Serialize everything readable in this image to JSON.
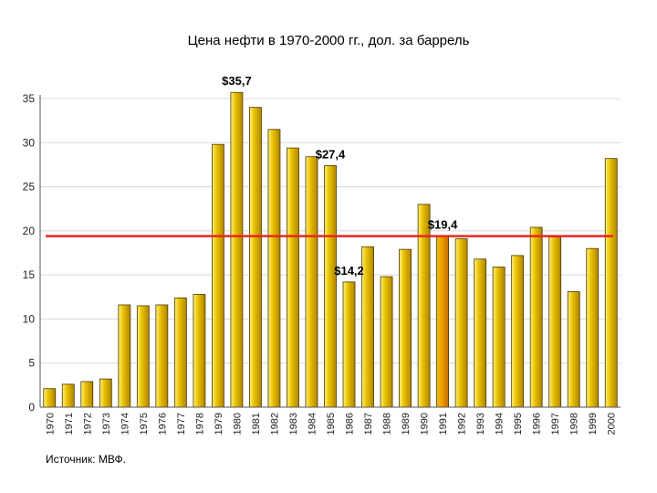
{
  "chart_data": {
    "type": "bar",
    "title": "Цена нефти в 1970-2000 гг., дол. за баррель",
    "source": "Источник: МВФ.",
    "xlabel": "",
    "ylabel": "",
    "ylim": [
      0,
      35
    ],
    "yticks": [
      0,
      5,
      10,
      15,
      20,
      25,
      30,
      35
    ],
    "grid": true,
    "categories": [
      "1970",
      "1971",
      "1972",
      "1973",
      "1974",
      "1975",
      "1976",
      "1977",
      "1978",
      "1979",
      "1980",
      "1981",
      "1982",
      "1983",
      "1984",
      "1985",
      "1986",
      "1987",
      "1988",
      "1989",
      "1990",
      "1991",
      "1992",
      "1993",
      "1994",
      "1995",
      "1996",
      "1997",
      "1998",
      "1999",
      "2000"
    ],
    "values": [
      2.1,
      2.6,
      2.9,
      3.2,
      11.6,
      11.5,
      11.6,
      12.4,
      12.8,
      29.8,
      35.7,
      34.0,
      31.5,
      29.4,
      28.4,
      27.4,
      14.2,
      18.2,
      14.8,
      17.9,
      23.0,
      19.4,
      19.1,
      16.8,
      15.9,
      17.2,
      20.4,
      19.3,
      13.1,
      18.0,
      28.2
    ],
    "highlight_category": "1991",
    "reference_line": {
      "value": 19.4,
      "color": "#e8261e"
    },
    "annotations": [
      {
        "category": "1980",
        "text": "$35,7"
      },
      {
        "category": "1985",
        "text": "$27,4"
      },
      {
        "category": "1986",
        "text": "$14,2"
      },
      {
        "category": "1991",
        "text": "$19,4"
      }
    ],
    "colors": {
      "bar": "#e8c000",
      "bar_light": "#fff27a",
      "bar_dark": "#b08400",
      "bar_highlight": "#f2a000",
      "bar_highlight_dark": "#c06a00",
      "bar_outline": "#4a3a00",
      "grid": "#d8d8d8",
      "axis": "#555555"
    }
  }
}
